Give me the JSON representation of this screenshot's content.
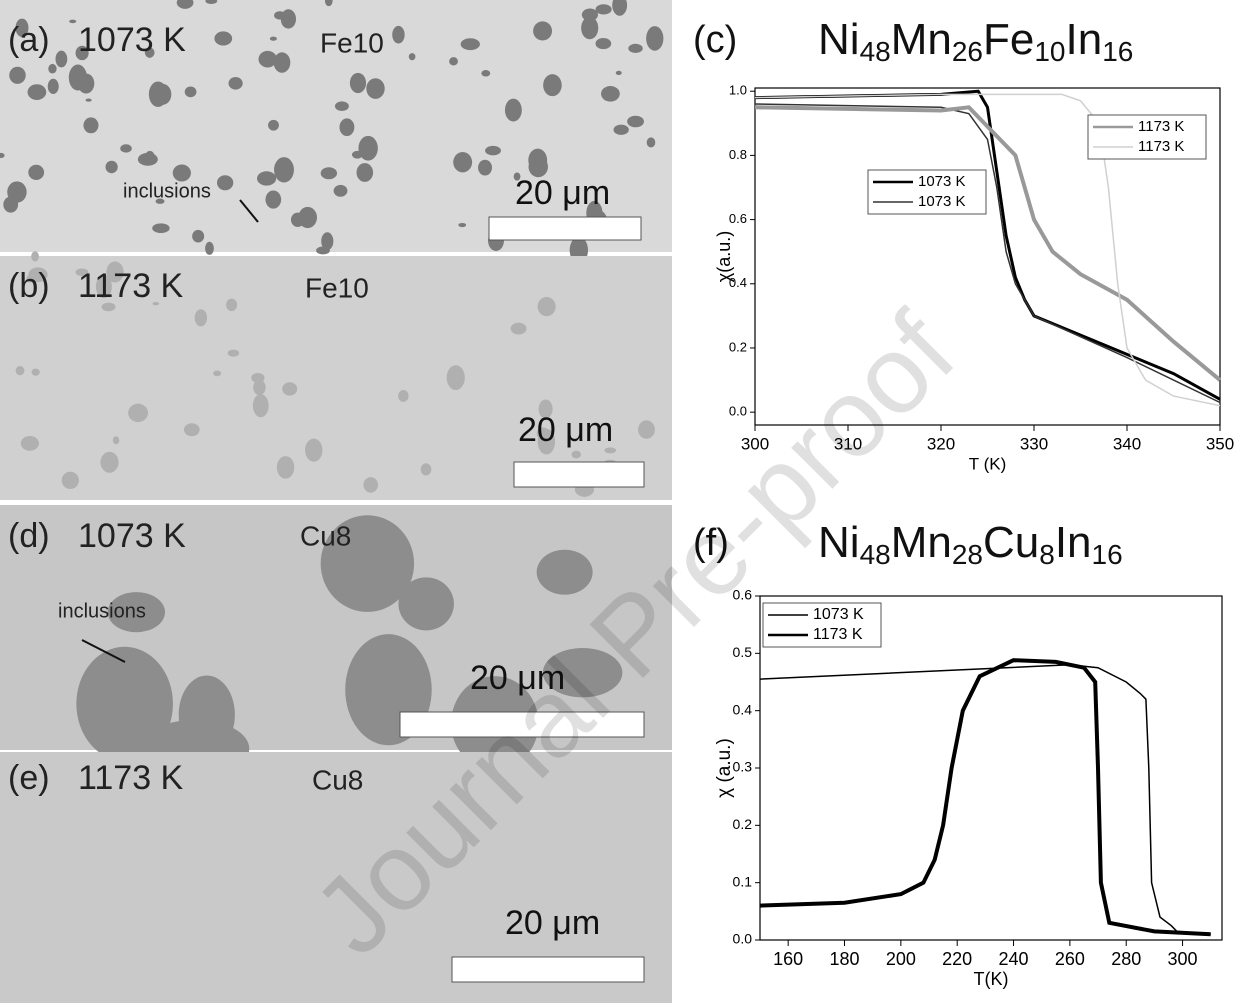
{
  "micrographs": [
    {
      "label": "(a)",
      "temperature": "1073 K",
      "alloy": "Fe10",
      "scale": "20 μm",
      "annotation": "inclusions"
    },
    {
      "label": "(b)",
      "temperature": "1173 K",
      "alloy": "Fe10",
      "scale": "20 μm"
    },
    {
      "label": "(d)",
      "temperature": "1073 K",
      "alloy": "Cu8",
      "scale": "20 μm",
      "annotation": "inclusions"
    },
    {
      "label": "(e)",
      "temperature": "1173 K",
      "alloy": "Cu8",
      "scale": "20 μm"
    }
  ],
  "watermark": "Journal Pre-proof",
  "chart_data": [
    {
      "type": "line",
      "panel": "(c)",
      "title": "Ni48Mn26Fe10In16",
      "xlabel": "T (K)",
      "ylabel": "χ(a.u.)",
      "xlim": [
        300,
        350
      ],
      "xticks": [
        300,
        310,
        320,
        330,
        340,
        350
      ],
      "ylim": [
        -0.04,
        1.01
      ],
      "yticks": [
        {
          "value": 0,
          "label": "0.0"
        },
        0.2,
        0.4,
        0.6,
        0.8,
        {
          "value": 1,
          "label": "1.0"
        }
      ],
      "series": [
        {
          "name": "1073 K",
          "color": "#000000",
          "x": [
            300,
            320,
            324,
            325,
            326,
            327,
            328,
            329,
            330,
            335,
            340,
            345,
            350
          ],
          "values": [
            0.98,
            0.99,
            1.0,
            0.95,
            0.75,
            0.55,
            0.42,
            0.35,
            0.3,
            0.24,
            0.18,
            0.12,
            0.04
          ]
        },
        {
          "name": "1073 K",
          "color": "#333333",
          "x": [
            300,
            320,
            323,
            325,
            326,
            327,
            328,
            330,
            340,
            350
          ],
          "values": [
            0.96,
            0.95,
            0.93,
            0.85,
            0.7,
            0.5,
            0.4,
            0.3,
            0.17,
            0.03
          ]
        },
        {
          "name": "1173 K",
          "color": "#999999",
          "x": [
            300,
            320,
            323,
            328,
            330,
            332,
            335,
            340,
            345,
            350
          ],
          "values": [
            0.95,
            0.94,
            0.95,
            0.8,
            0.6,
            0.5,
            0.43,
            0.35,
            0.22,
            0.1
          ]
        },
        {
          "name": "1173 K",
          "color": "#d0d0d0",
          "x": [
            300,
            320,
            333,
            335,
            337,
            338,
            339,
            340,
            342,
            345,
            350
          ],
          "values": [
            0.98,
            0.99,
            0.99,
            0.97,
            0.9,
            0.7,
            0.4,
            0.2,
            0.1,
            0.05,
            0.02
          ]
        }
      ]
    },
    {
      "type": "line",
      "panel": "(f)",
      "title": "Ni48Mn28Cu8In16",
      "xlabel": "T(K)",
      "ylabel": "χ (a.u.)",
      "xlim": [
        150,
        314
      ],
      "xticks": [
        160,
        180,
        200,
        220,
        240,
        260,
        280,
        300
      ],
      "ylim": [
        0,
        0.6
      ],
      "yticks": [
        {
          "value": 0,
          "label": "0.0"
        },
        0.1,
        0.2,
        0.3,
        0.4,
        0.5,
        0.6
      ],
      "series": [
        {
          "name": "1073 K",
          "color": "#000000",
          "x": [
            150,
            260,
            270,
            280,
            285,
            287,
            288,
            289,
            292,
            296,
            298,
            310
          ],
          "values": [
            0.455,
            0.48,
            0.475,
            0.45,
            0.43,
            0.42,
            0.3,
            0.1,
            0.04,
            0.025,
            0.015,
            0.01
          ]
        },
        {
          "name": "1173 K",
          "color": "#000000",
          "x": [
            150,
            180,
            200,
            208,
            212,
            215,
            218,
            222,
            228,
            240,
            255,
            265,
            269,
            270,
            271,
            274,
            290,
            310
          ],
          "values": [
            0.06,
            0.065,
            0.08,
            0.1,
            0.14,
            0.2,
            0.3,
            0.4,
            0.46,
            0.488,
            0.485,
            0.475,
            0.45,
            0.3,
            0.1,
            0.03,
            0.015,
            0.01
          ]
        }
      ]
    }
  ]
}
